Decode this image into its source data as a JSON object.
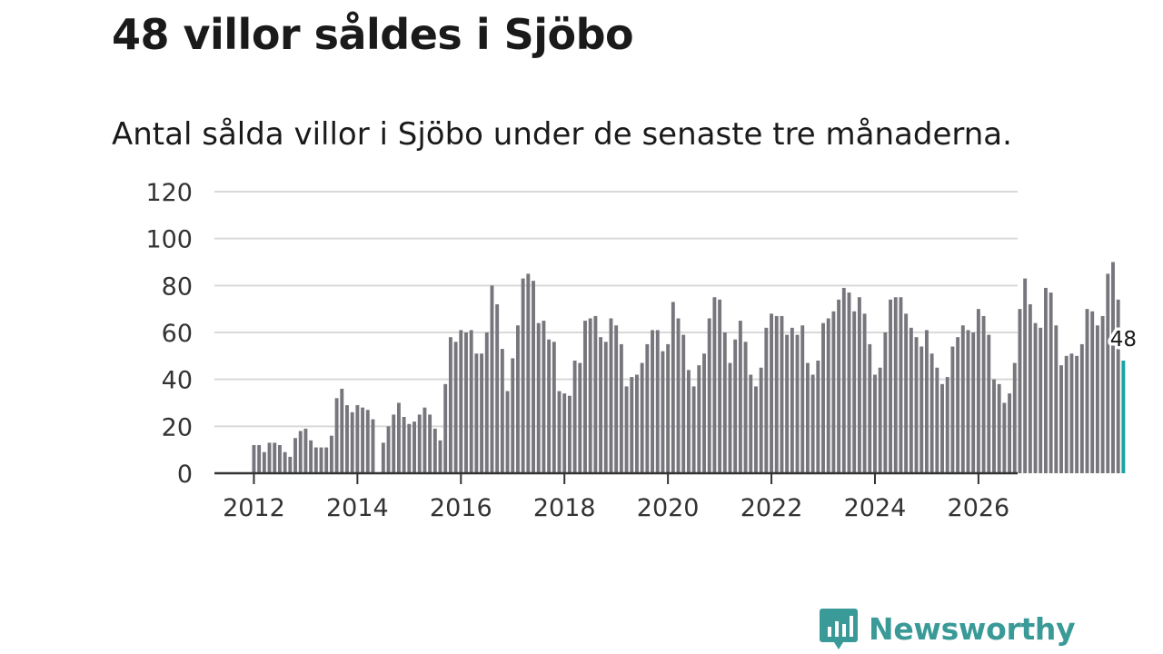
{
  "title": "48 villor såldes i Sjöbo",
  "subtitle": "Antal sålda villor i Sjöbo under de senaste tre månaderna.",
  "brand": {
    "name": "Newsworthy",
    "color": "#3a9a97",
    "icon": "newsworthy-logo-icon"
  },
  "colors": {
    "bar": "#76767c",
    "highlight": "#1aa3a3",
    "grid": "#d9d9d9",
    "axis": "#333333"
  },
  "chart_data": {
    "type": "bar",
    "title": "48 villor såldes i Sjöbo",
    "subtitle": "Antal sålda villor i Sjöbo under de senaste tre månaderna.",
    "xlabel": "",
    "ylabel": "",
    "ylim": [
      0,
      120
    ],
    "y_ticks": [
      0,
      20,
      40,
      60,
      80,
      100,
      120
    ],
    "x_ticks": [
      {
        "label": "2012",
        "index": 0
      },
      {
        "label": "2014",
        "index": 20
      },
      {
        "label": "2016",
        "index": 40
      },
      {
        "label": "2018",
        "index": 60
      },
      {
        "label": "2020",
        "index": 80
      },
      {
        "label": "2022",
        "index": 100
      },
      {
        "label": "2024",
        "index": 120
      },
      {
        "label": "2026",
        "index": 140
      }
    ],
    "grid": true,
    "start_period": "2012-01",
    "interval": "10 per year (approx.)",
    "values": [
      12,
      12,
      9,
      13,
      13,
      12,
      9,
      7,
      15,
      18,
      19,
      14,
      11,
      11,
      11,
      16,
      32,
      36,
      29,
      26,
      29,
      28,
      27,
      23,
      0,
      13,
      20,
      25,
      30,
      24,
      21,
      22,
      25,
      28,
      25,
      19,
      14,
      38,
      58,
      56,
      61,
      60,
      61,
      51,
      51,
      60,
      80,
      72,
      53,
      35,
      49,
      63,
      83,
      85,
      82,
      64,
      65,
      57,
      56,
      35,
      34,
      33,
      48,
      47,
      65,
      66,
      67,
      58,
      56,
      66,
      63,
      55,
      37,
      41,
      42,
      47,
      55,
      61,
      61,
      52,
      55,
      73,
      66,
      59,
      44,
      37,
      46,
      51,
      66,
      75,
      74,
      60,
      47,
      57,
      65,
      56,
      42,
      37,
      45,
      62,
      68,
      67,
      67,
      59,
      62,
      59,
      63,
      47,
      42,
      48,
      64,
      66,
      69,
      74,
      79,
      77,
      69,
      75,
      68,
      55,
      42,
      45,
      60,
      74,
      75,
      75,
      68,
      62,
      58,
      54,
      61,
      51,
      45,
      38,
      41,
      54,
      58,
      63,
      61,
      60,
      70,
      67,
      59,
      40,
      38,
      30,
      34,
      47,
      70,
      83,
      72,
      64,
      62,
      79,
      77,
      63,
      46,
      50,
      51,
      50,
      55,
      70,
      69,
      63,
      67,
      85,
      90,
      74,
      48
    ],
    "highlight": {
      "index": 168,
      "value": 48,
      "label": "48"
    }
  }
}
